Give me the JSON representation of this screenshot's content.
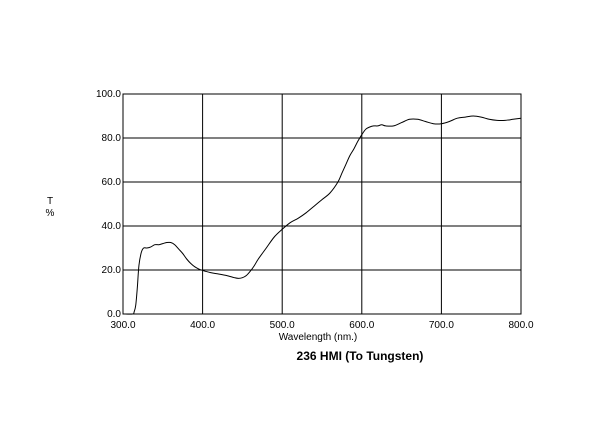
{
  "chart_data": {
    "type": "line",
    "title": "236 HMI (To Tungsten)",
    "xlabel": "Wavelength (nm.)",
    "ylabel_line1": "T",
    "ylabel_line2": "%",
    "xlim": [
      300,
      800
    ],
    "ylim": [
      0,
      100
    ],
    "grid": true,
    "x_ticks": [
      300,
      400,
      500,
      600,
      700,
      800
    ],
    "x_tick_labels": [
      "300.0",
      "400.0",
      "500.0",
      "600.0",
      "700.0",
      "800.0"
    ],
    "y_ticks": [
      0,
      20,
      40,
      60,
      80,
      100
    ],
    "y_tick_labels": [
      "0.0",
      "20.0",
      "40.0",
      "60.0",
      "80.0",
      "100.0"
    ],
    "series": [
      {
        "color": "#000000",
        "x": [
          300,
          312,
          314,
          316,
          318,
          320,
          323,
          326,
          330,
          335,
          340,
          345,
          350,
          355,
          360,
          365,
          370,
          375,
          380,
          385,
          390,
          395,
          400,
          410,
          420,
          430,
          440,
          445,
          450,
          455,
          460,
          465,
          470,
          480,
          490,
          500,
          510,
          520,
          530,
          540,
          550,
          560,
          570,
          575,
          580,
          585,
          590,
          595,
          600,
          605,
          610,
          615,
          620,
          625,
          630,
          640,
          650,
          660,
          670,
          680,
          690,
          700,
          710,
          720,
          730,
          740,
          750,
          760,
          770,
          780,
          790,
          800
        ],
        "y": [
          0,
          0,
          1,
          4,
          12,
          22,
          28,
          30,
          30,
          30.5,
          31.5,
          31.5,
          32,
          32.5,
          32.5,
          31.5,
          29.5,
          27.5,
          25,
          23,
          21.5,
          20.5,
          19.8,
          18.8,
          18.2,
          17.5,
          16.5,
          16.2,
          16.5,
          17.5,
          19.5,
          22,
          25,
          30,
          35,
          38.5,
          41.5,
          43.5,
          46,
          49,
          52,
          55,
          60,
          64,
          68,
          72,
          75,
          78.5,
          81.5,
          84,
          85,
          85.5,
          85.5,
          86,
          85.5,
          85.5,
          87,
          88.5,
          88.5,
          87.5,
          86.5,
          86.5,
          87.5,
          89,
          89.5,
          90,
          89.5,
          88.5,
          88,
          88,
          88.5,
          89
        ]
      }
    ]
  }
}
